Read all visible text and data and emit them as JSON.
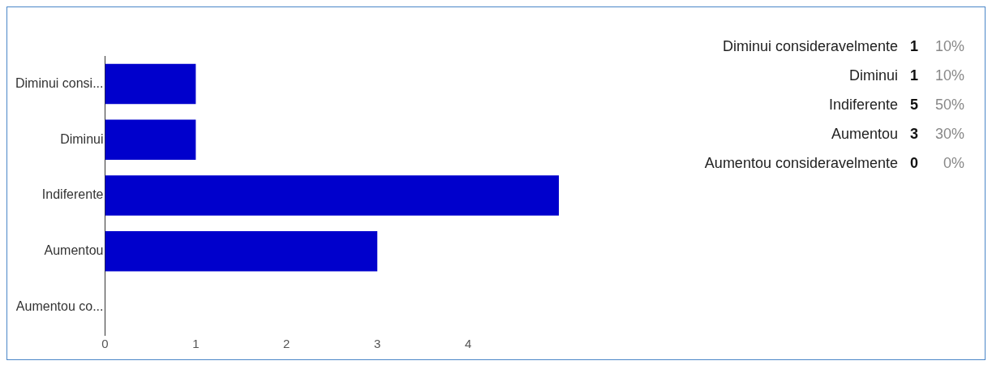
{
  "chart_data": [
    {
      "type": "bar",
      "orientation": "horizontal",
      "categories": [
        "Diminui consi...",
        "Diminui",
        "Indiferente",
        "Aumentou",
        "Aumentou co..."
      ],
      "values": [
        1,
        1,
        5,
        3,
        0
      ],
      "color": "#0000cc",
      "xlim": [
        0,
        5
      ],
      "xticks": [
        0,
        1,
        2,
        3,
        4
      ],
      "grid": false,
      "legend": false
    },
    {
      "type": "other",
      "annotations": [
        "Diminui consideravelmente",
        "1",
        "10%",
        "Diminui",
        "1",
        "10%",
        "Indiferente",
        "5",
        "50%",
        "Aumentou",
        "3",
        "30%",
        "Aumentou consideravelmente",
        "0",
        "0%"
      ]
    }
  ]
}
